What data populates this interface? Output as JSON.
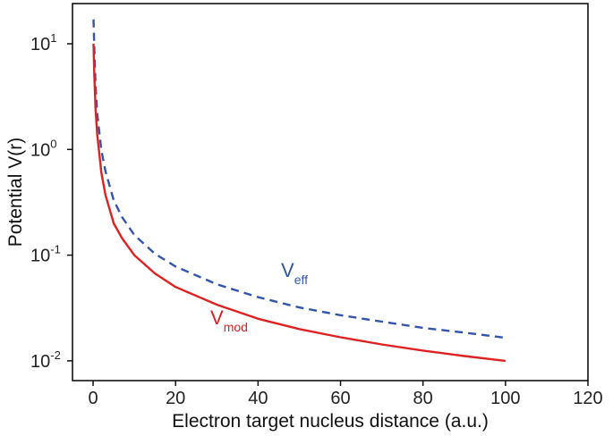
{
  "chart_data": {
    "type": "line",
    "xlabel": "Electron target nucleus distance (a.u.)",
    "ylabel": "Potential V(r)",
    "xlim": [
      -5,
      120
    ],
    "ylim": [
      0.0065,
      24
    ],
    "yscale": "log",
    "xticks": [
      0,
      20,
      40,
      60,
      80,
      100,
      120
    ],
    "yticks": [
      {
        "value": 10,
        "base": "10",
        "exp": "1"
      },
      {
        "value": 1,
        "base": "10",
        "exp": "0"
      },
      {
        "value": 0.1,
        "base": "10",
        "exp": "-1"
      },
      {
        "value": 0.01,
        "base": "10",
        "exp": "-2"
      }
    ],
    "grid": false,
    "series": [
      {
        "name": "V_eff",
        "label_main": "V",
        "label_sub": "eff",
        "color": "#3355aa",
        "style": "dashed",
        "x": [
          0.1,
          0.3,
          0.6,
          1,
          2,
          3,
          5,
          7,
          10,
          15,
          20,
          30,
          40,
          50,
          60,
          70,
          80,
          90,
          100
        ],
        "y": [
          17,
          9,
          4,
          2.2,
          0.98,
          0.62,
          0.33,
          0.23,
          0.155,
          0.103,
          0.078,
          0.053,
          0.04,
          0.032,
          0.027,
          0.0235,
          0.0205,
          0.0185,
          0.0165
        ]
      },
      {
        "name": "V_mod",
        "label_main": "V",
        "label_sub": "mod",
        "color": "#dd2222",
        "style": "solid",
        "x": [
          0.1,
          0.3,
          0.6,
          1,
          2,
          3,
          5,
          7,
          10,
          15,
          20,
          30,
          40,
          50,
          60,
          70,
          80,
          90,
          100
        ],
        "y": [
          10,
          5,
          2.4,
          1.4,
          0.6,
          0.37,
          0.2,
          0.145,
          0.1,
          0.067,
          0.05,
          0.034,
          0.025,
          0.02,
          0.0167,
          0.0143,
          0.0125,
          0.0111,
          0.01
        ]
      }
    ]
  }
}
